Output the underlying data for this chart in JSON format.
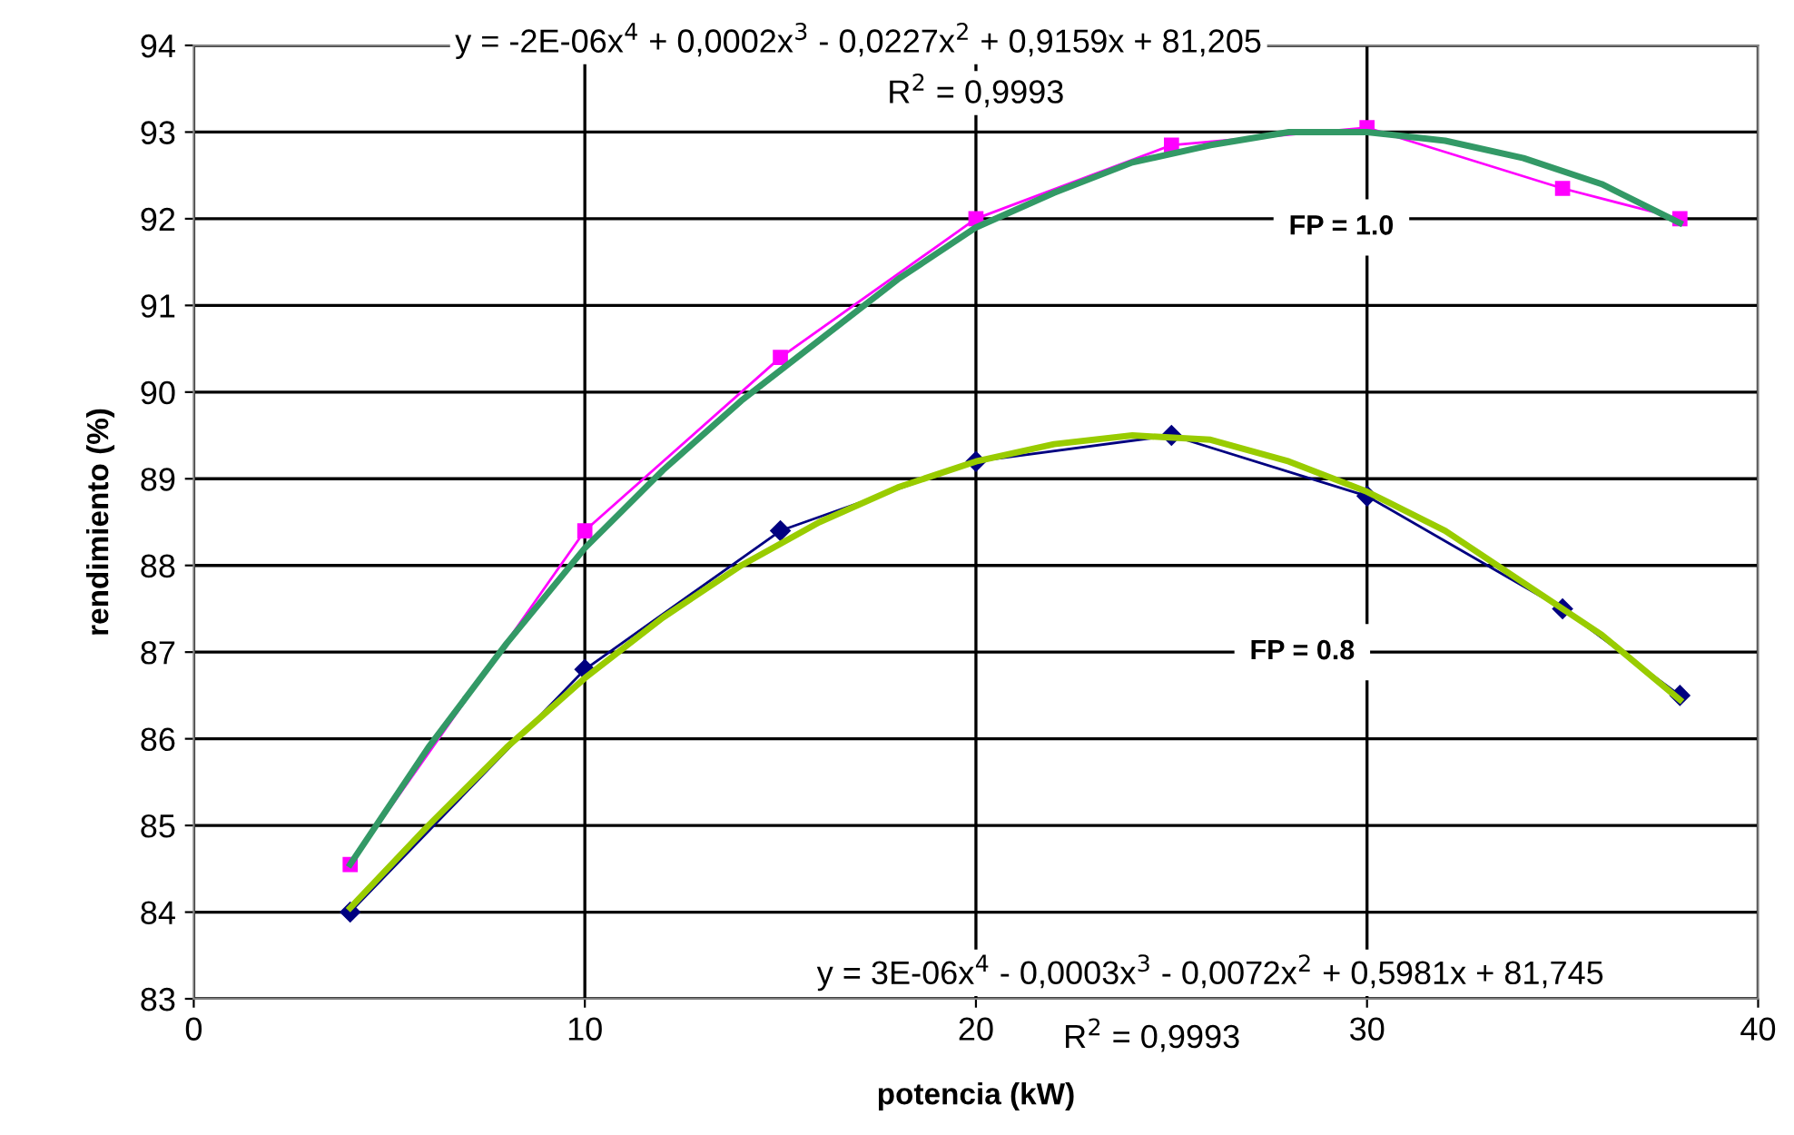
{
  "chart_data": {
    "type": "line",
    "xlabel": "potencia (kW)",
    "ylabel": "rendimiento (%)",
    "xlim": [
      0,
      40
    ],
    "xticks": [
      0,
      10,
      20,
      30,
      40
    ],
    "ylim": [
      83,
      94
    ],
    "yticks": [
      83,
      84,
      85,
      86,
      87,
      88,
      89,
      90,
      91,
      92,
      93,
      94
    ],
    "grid": true,
    "legend": false,
    "series": [
      {
        "color": "#ff00ff",
        "marker": "square",
        "x": [
          4,
          10,
          15,
          20,
          25,
          30,
          35,
          38
        ],
        "values": [
          84.55,
          88.4,
          90.4,
          92.0,
          92.85,
          93.05,
          92.35,
          92.0
        ]
      },
      {
        "color": "#000080",
        "marker": "diamond",
        "x": [
          4,
          10,
          15,
          20,
          25,
          30,
          35,
          38
        ],
        "values": [
          84.0,
          86.8,
          88.4,
          89.2,
          89.5,
          88.8,
          87.5,
          86.5
        ]
      },
      {
        "color": "#339966",
        "marker": "none",
        "x": [
          4,
          6,
          8,
          10,
          12,
          14,
          16,
          18,
          20,
          22,
          24,
          26,
          28,
          30,
          32,
          34,
          36,
          38
        ],
        "values": [
          84.55,
          85.9,
          87.1,
          88.2,
          89.1,
          89.9,
          90.6,
          91.3,
          91.9,
          92.3,
          92.65,
          92.85,
          93.0,
          93.0,
          92.9,
          92.7,
          92.4,
          91.95
        ]
      },
      {
        "color": "#99cc00",
        "marker": "none",
        "x": [
          4,
          6,
          8,
          10,
          12,
          14,
          16,
          18,
          20,
          22,
          24,
          26,
          28,
          30,
          32,
          34,
          36,
          38
        ],
        "values": [
          84.05,
          85.0,
          85.9,
          86.7,
          87.4,
          88.0,
          88.5,
          88.9,
          89.2,
          89.4,
          89.5,
          89.45,
          89.2,
          88.85,
          88.4,
          87.8,
          87.2,
          86.45
        ]
      }
    ],
    "annotations": [
      "y = -2E-06x$^{4}$ + 0,0002x$^{3}$ - 0,0227x$^{2}$ + 0,9159x + 81,205",
      "R$^{2}$ = 0,9993",
      "y = 3E-06x$^{4}$ - 0,0003x$^{3}$ - 0,0072x$^{2}$ + 0,5981x + 81,745",
      "R$^{2}$ = 0,9993",
      "FP = 1.0",
      "FP = 0.8"
    ]
  }
}
